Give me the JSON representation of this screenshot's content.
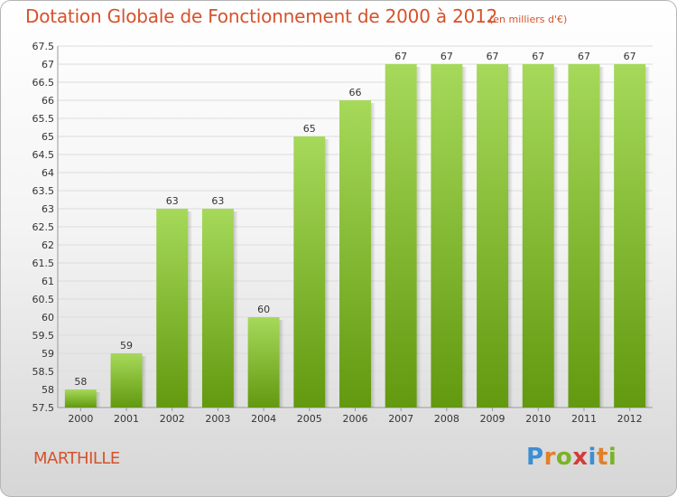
{
  "header": {
    "title": "Dotation Globale de Fonctionnement de 2000 à 2012",
    "unit": "(en milliers d'€)"
  },
  "footer": {
    "commune": "MARTHILLE",
    "logo_letters": [
      "P",
      "r",
      "o",
      "x",
      "i",
      "t",
      "i"
    ],
    "logo_colors": [
      "#3b8fd4",
      "#e0802a",
      "#7bb326",
      "#d43b3b",
      "#3b8fd4",
      "#e0802a",
      "#7bb326"
    ]
  },
  "chart_data": {
    "type": "bar",
    "categories": [
      "2000",
      "2001",
      "2002",
      "2003",
      "2004",
      "2005",
      "2006",
      "2007",
      "2008",
      "2009",
      "2010",
      "2011",
      "2012"
    ],
    "values": [
      58,
      59,
      63,
      63,
      60,
      65,
      66,
      67,
      67,
      67,
      67,
      67,
      67
    ],
    "title": "Dotation Globale de Fonctionnement de 2000 à 2012",
    "subtitle": "(en milliers d'€)",
    "ylim": [
      57.5,
      67.5
    ],
    "ytick_step": 0.5,
    "yticks": [
      "57.5",
      "58",
      "58.5",
      "59",
      "59.5",
      "60",
      "60.5",
      "61",
      "61.5",
      "62",
      "62.5",
      "63",
      "63.5",
      "64",
      "64.5",
      "65",
      "65.5",
      "66",
      "66.5",
      "67",
      "67.5"
    ],
    "grid": true,
    "bar_color_top": "#a6d95a",
    "bar_color_bottom": "#62990f"
  }
}
